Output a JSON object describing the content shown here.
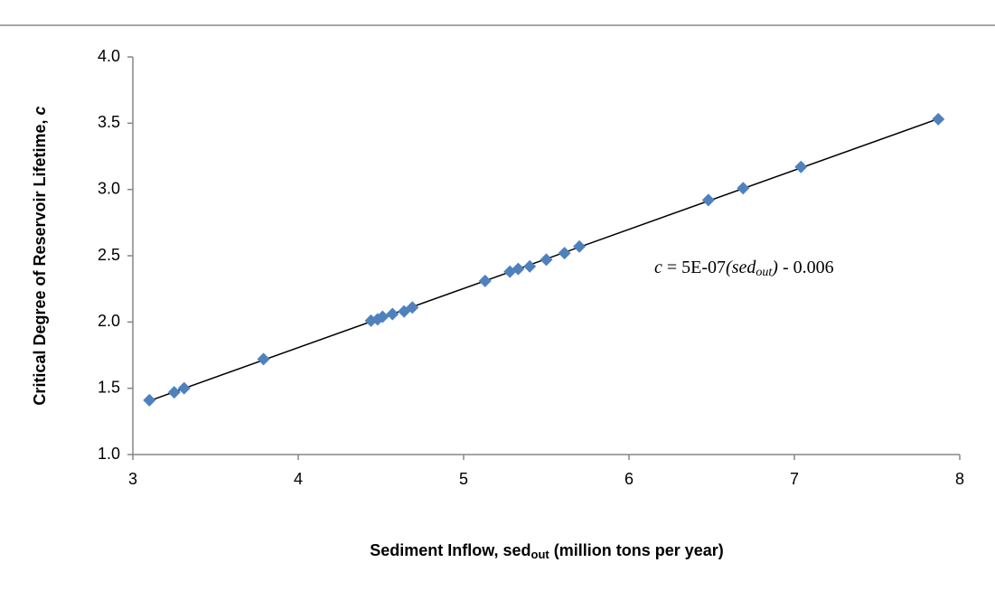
{
  "chart_data": {
    "type": "scatter",
    "color": "#4f81bd",
    "trendline": true,
    "x": [
      3.1,
      3.25,
      3.31,
      3.79,
      4.44,
      4.48,
      4.51,
      4.57,
      4.64,
      4.69,
      5.13,
      5.28,
      5.33,
      5.4,
      5.5,
      5.61,
      5.7,
      6.48,
      6.69,
      7.04,
      7.87
    ],
    "values": [
      1.41,
      1.47,
      1.5,
      1.72,
      2.01,
      2.02,
      2.04,
      2.06,
      2.08,
      2.11,
      2.31,
      2.38,
      2.4,
      2.42,
      2.47,
      2.52,
      2.57,
      2.92,
      3.01,
      3.17,
      3.53
    ],
    "xlim": [
      3,
      8
    ],
    "xticks": [
      3,
      4,
      5,
      6,
      7,
      8
    ],
    "ylim": [
      1,
      4
    ],
    "yticks": [
      {
        "value": 1,
        "label": "1.0"
      },
      1.5,
      {
        "value": 2,
        "label": "2.0"
      },
      2.5,
      {
        "value": 3,
        "label": "3.0"
      },
      3.5,
      {
        "value": 4,
        "label": "4.0"
      }
    ],
    "x_label": [
      "Sediment Inflow, sed",
      "out",
      " (million  tons per year)"
    ],
    "y_label": [
      "Critical Degree of Reservoir  Lifetime, ",
      "c"
    ],
    "annotation": [
      "c",
      " = 5E-07",
      "(sed",
      "out",
      ")",
      " - 0.006"
    ]
  }
}
